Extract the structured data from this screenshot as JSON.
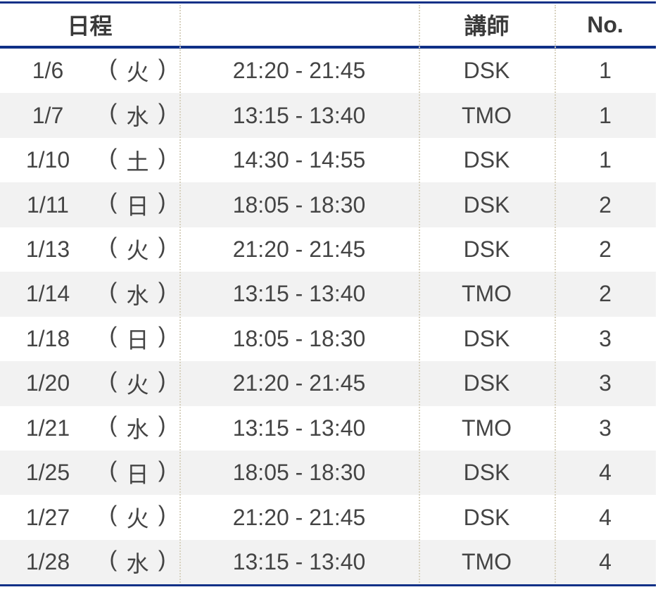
{
  "header": {
    "schedule": "日程",
    "time": "",
    "instructor": "講師",
    "no": "No."
  },
  "colors": {
    "border": "#0f3087",
    "alt_row": "#f2f2f2",
    "text": "#444444"
  },
  "rows": [
    {
      "date": "1/6",
      "dow": "火",
      "time": "21:20 - 21:45",
      "instructor": "DSK",
      "no": "1"
    },
    {
      "date": "1/7",
      "dow": "水",
      "time": "13:15 - 13:40",
      "instructor": "TMO",
      "no": "1"
    },
    {
      "date": "1/10",
      "dow": "土",
      "time": "14:30 - 14:55",
      "instructor": "DSK",
      "no": "1"
    },
    {
      "date": "1/11",
      "dow": "日",
      "time": "18:05 - 18:30",
      "instructor": "DSK",
      "no": "2"
    },
    {
      "date": "1/13",
      "dow": "火",
      "time": "21:20 - 21:45",
      "instructor": "DSK",
      "no": "2"
    },
    {
      "date": "1/14",
      "dow": "水",
      "time": "13:15 - 13:40",
      "instructor": "TMO",
      "no": "2"
    },
    {
      "date": "1/18",
      "dow": "日",
      "time": "18:05 - 18:30",
      "instructor": "DSK",
      "no": "3"
    },
    {
      "date": "1/20",
      "dow": "火",
      "time": "21:20 - 21:45",
      "instructor": "DSK",
      "no": "3"
    },
    {
      "date": "1/21",
      "dow": "水",
      "time": "13:15 - 13:40",
      "instructor": "TMO",
      "no": "3"
    },
    {
      "date": "1/25",
      "dow": "日",
      "time": "18:05 - 18:30",
      "instructor": "DSK",
      "no": "4"
    },
    {
      "date": "1/27",
      "dow": "火",
      "time": "21:20 - 21:45",
      "instructor": "DSK",
      "no": "4"
    },
    {
      "date": "1/28",
      "dow": "水",
      "time": "13:15 - 13:40",
      "instructor": "TMO",
      "no": "4"
    }
  ]
}
